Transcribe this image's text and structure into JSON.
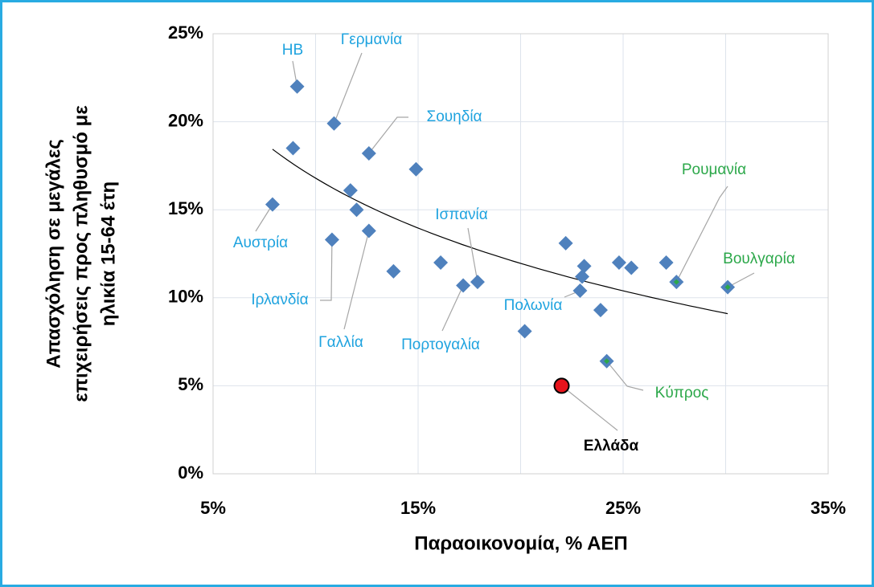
{
  "chart_data": {
    "type": "scatter",
    "xlabel": "Παραοικονομία, % ΑΕΠ",
    "ylabel": [
      "Απασχόληση σε μεγάλες",
      "επιχειρήσεις προς πληθυσμό με",
      "ηλικία 15-64 έτη"
    ],
    "xlim": [
      5,
      35
    ],
    "ylim": [
      0,
      25
    ],
    "xticks": [
      {
        "value": 5,
        "label": "5%"
      },
      {
        "value": 15,
        "label": "15%"
      },
      {
        "value": 25,
        "label": "25%"
      },
      {
        "value": 35,
        "label": "35%"
      }
    ],
    "xgrid": [
      5,
      10,
      15,
      20,
      25,
      30,
      35
    ],
    "yticks": [
      {
        "value": 0,
        "label": "0%"
      },
      {
        "value": 5,
        "label": "5%"
      },
      {
        "value": 10,
        "label": "10%"
      },
      {
        "value": 15,
        "label": "15%"
      },
      {
        "value": 20,
        "label": "20%"
      },
      {
        "value": 25,
        "label": "25%"
      }
    ],
    "grid": true,
    "trendline": "logarithmic",
    "series": [
      {
        "color": "#4f81bd",
        "label_color": "#1fa3df",
        "marker": "diamond",
        "x": [
          9.1,
          10.9,
          12.6,
          8.9,
          14.9,
          11.7,
          12.0,
          7.9,
          10.8,
          12.6,
          13.8,
          16.1,
          17.2,
          17.9,
          20.2,
          22.2,
          23.1,
          23.0,
          22.9,
          23.9,
          24.8,
          25.4,
          27.1
        ],
        "values": [
          22.0,
          19.9,
          18.2,
          18.5,
          17.3,
          16.1,
          15.0,
          15.3,
          13.3,
          13.8,
          11.5,
          12.0,
          10.7,
          10.9,
          8.1,
          13.1,
          11.8,
          11.2,
          10.4,
          9.3,
          12.0,
          11.7,
          12.0
        ],
        "labels": [
          "ΗΒ",
          "Γερμανία",
          "Σουηδία",
          null,
          null,
          null,
          null,
          "Αυστρία",
          "Ιρλανδία",
          "Γαλλία",
          null,
          null,
          "Πορτογαλία",
          "Ισπανία",
          null,
          null,
          null,
          null,
          "Πολωνία",
          null,
          null,
          null,
          null
        ]
      },
      {
        "color": "#4f81bd",
        "inner_color": "#2ca84a",
        "label_color": "#2ca84a",
        "marker": "diamond",
        "x": [
          27.6,
          30.1,
          24.2
        ],
        "values": [
          10.9,
          10.6,
          6.4
        ],
        "labels": [
          "Ρουμανία",
          "Βουλγαρία",
          "Κύπρος"
        ]
      },
      {
        "color": "#e8141c",
        "label_color": "#000000",
        "marker": "circle",
        "label_bold": true,
        "x": [
          22.0
        ],
        "values": [
          5.0
        ],
        "labels": [
          "Ελλάδα"
        ]
      }
    ]
  }
}
